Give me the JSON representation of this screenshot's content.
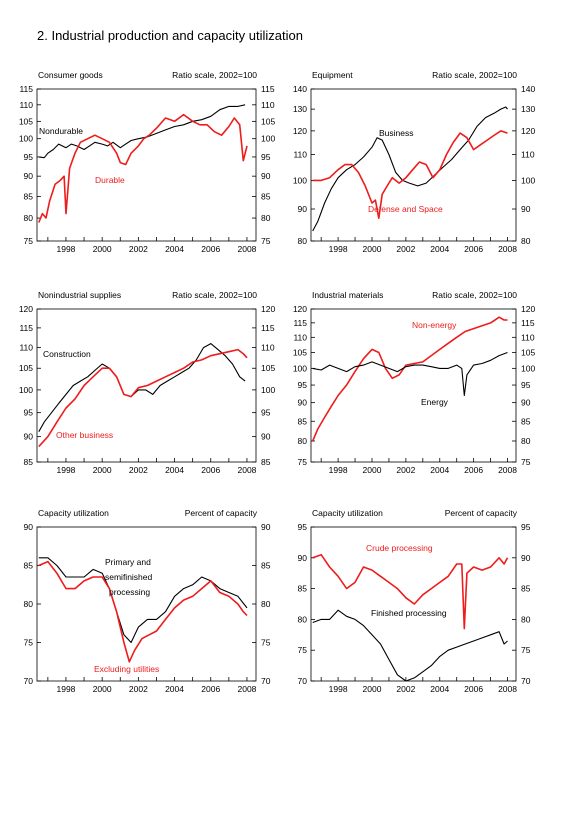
{
  "page": {
    "title": "2.  Industrial production and capacity utilization"
  },
  "colors": {
    "red": "#ee1c1c",
    "black": "#000000"
  },
  "chart_data": [
    {
      "type": "line",
      "title": "Consumer goods",
      "subtitle": "Ratio scale, 2002=100",
      "xlim": [
        1996.4,
        2008.5
      ],
      "ylim": [
        75,
        115
      ],
      "yticks": [
        75,
        80,
        85,
        90,
        95,
        100,
        105,
        110,
        115
      ],
      "xticks": [
        1998,
        2000,
        2002,
        2004,
        2006,
        2008
      ],
      "log_scale": true,
      "series": [
        {
          "name": "Nondurable",
          "color": "#000000",
          "x": [
            1996.5,
            1996.8,
            1997.0,
            1997.3,
            1997.6,
            1998.0,
            1998.3,
            1998.6,
            1999.0,
            1999.3,
            1999.6,
            2000.0,
            2000.3,
            2000.6,
            2001.0,
            2001.3,
            2001.6,
            2002.0,
            2002.5,
            2003.0,
            2003.5,
            2004.0,
            2004.5,
            2005.0,
            2005.5,
            2006.0,
            2006.5,
            2007.0,
            2007.5,
            2007.9
          ],
          "y": [
            95,
            94.8,
            96,
            97,
            98.5,
            97.5,
            98.5,
            98,
            97,
            98,
            99,
            98.5,
            98,
            99,
            97.5,
            98.5,
            99.5,
            100,
            100.5,
            101.5,
            102.5,
            103.5,
            104,
            105,
            105.5,
            106.5,
            108.5,
            109.5,
            109.5,
            110
          ]
        },
        {
          "name": "Durable",
          "color": "#ee1c1c",
          "x": [
            1996.5,
            1996.7,
            1996.9,
            1997.1,
            1997.4,
            1997.7,
            1997.9,
            1998.0,
            1998.2,
            1998.5,
            1998.8,
            1999.2,
            1999.6,
            2000.0,
            2000.4,
            2000.8,
            2001.0,
            2001.3,
            2001.6,
            2002.0,
            2002.3,
            2002.6,
            2003.0,
            2003.5,
            2004.0,
            2004.5,
            2005.0,
            2005.4,
            2005.8,
            2006.2,
            2006.6,
            2007.0,
            2007.3,
            2007.6,
            2007.8,
            2008.0
          ],
          "y": [
            79,
            81,
            80,
            84,
            88,
            89,
            90,
            81,
            92,
            96,
            99,
            100,
            101,
            100,
            99,
            96,
            93.5,
            93,
            96,
            98,
            100,
            101,
            103,
            106,
            105,
            107,
            105,
            104,
            104,
            102,
            101,
            103.5,
            106,
            104,
            94,
            98
          ]
        }
      ],
      "annotations": [
        {
          "text": "Nondurable",
          "color": "#000000"
        },
        {
          "text": "Durable",
          "color": "#ee1c1c"
        }
      ]
    },
    {
      "type": "line",
      "title": "Equipment",
      "subtitle": "Ratio scale, 2002=100",
      "xlim": [
        1996.4,
        2008.5
      ],
      "ylim": [
        80,
        140
      ],
      "yticks": [
        80,
        90,
        100,
        110,
        120,
        130,
        140
      ],
      "xticks": [
        1998,
        2000,
        2002,
        2004,
        2006,
        2008
      ],
      "log_scale": true,
      "series": [
        {
          "name": "Business",
          "color": "#000000",
          "x": [
            1996.5,
            1996.8,
            1997.2,
            1997.6,
            1998.0,
            1998.5,
            1999.0,
            1999.5,
            2000.0,
            2000.3,
            2000.6,
            2001.0,
            2001.4,
            2001.8,
            2002.2,
            2002.7,
            2003.2,
            2003.7,
            2004.2,
            2004.7,
            2005.2,
            2005.7,
            2006.2,
            2006.7,
            2007.2,
            2007.6,
            2007.9,
            2008.0
          ],
          "y": [
            83,
            86,
            92,
            97,
            101,
            104,
            106,
            109,
            113,
            117,
            116,
            110,
            103,
            100,
            99,
            98,
            99,
            102,
            105,
            108,
            112,
            116,
            122,
            126,
            128,
            130,
            131,
            130
          ]
        },
        {
          "name": "Defense and Space",
          "color": "#ee1c1c",
          "x": [
            1996.5,
            1997.0,
            1997.5,
            1998.0,
            1998.4,
            1998.8,
            1999.2,
            1999.6,
            2000.0,
            2000.2,
            2000.4,
            2000.6,
            2000.9,
            2001.2,
            2001.6,
            2002.0,
            2002.4,
            2002.8,
            2003.2,
            2003.6,
            2004.0,
            2004.4,
            2004.8,
            2005.2,
            2005.6,
            2006.0,
            2006.4,
            2006.8,
            2007.2,
            2007.6,
            2008.0
          ],
          "y": [
            100,
            100,
            101,
            104,
            106,
            106,
            103,
            98,
            92,
            93,
            87,
            95,
            98,
            101,
            99,
            101,
            104,
            107,
            106,
            101,
            104,
            110,
            115,
            119,
            117,
            112,
            114,
            116,
            118,
            120,
            119
          ]
        }
      ],
      "annotations": [
        {
          "text": "Business",
          "color": "#000000"
        },
        {
          "text": "Defense and Space",
          "color": "#ee1c1c"
        }
      ]
    },
    {
      "type": "line",
      "title": "Nonindustrial supplies",
      "subtitle": "Ratio scale, 2002=100",
      "xlim": [
        1996.4,
        2008.5
      ],
      "ylim": [
        85,
        120
      ],
      "yticks": [
        85,
        90,
        95,
        100,
        105,
        110,
        115,
        120
      ],
      "xticks": [
        1998,
        2000,
        2002,
        2004,
        2006,
        2008
      ],
      "log_scale": true,
      "series": [
        {
          "name": "Construction",
          "color": "#000000",
          "x": [
            1996.5,
            1996.8,
            1997.2,
            1997.6,
            1998.0,
            1998.4,
            1998.8,
            1999.2,
            1999.6,
            2000.0,
            2000.4,
            2000.8,
            2001.2,
            2001.6,
            2002.0,
            2002.4,
            2002.8,
            2003.2,
            2003.6,
            2004.0,
            2004.4,
            2004.8,
            2005.2,
            2005.6,
            2006.0,
            2006.4,
            2006.8,
            2007.2,
            2007.6,
            2007.9
          ],
          "y": [
            91,
            93,
            95,
            97,
            99,
            101,
            102,
            103,
            104.5,
            106,
            105,
            103,
            99,
            98.5,
            100,
            100,
            99,
            101,
            102,
            103,
            104,
            105,
            107,
            110,
            111,
            109.5,
            108,
            106,
            103,
            102
          ]
        },
        {
          "name": "Other business",
          "color": "#ee1c1c",
          "x": [
            1996.5,
            1997.0,
            1997.5,
            1998.0,
            1998.5,
            1999.0,
            1999.5,
            2000.0,
            2000.4,
            2000.8,
            2001.2,
            2001.6,
            2002.0,
            2002.5,
            2003.0,
            2003.5,
            2004.0,
            2004.5,
            2005.0,
            2005.5,
            2006.0,
            2006.5,
            2007.0,
            2007.5,
            2007.8,
            2008.0
          ],
          "y": [
            88,
            90,
            93,
            96,
            98,
            101,
            103,
            105,
            105,
            103,
            99,
            98.5,
            100.5,
            101,
            102,
            103,
            104,
            105,
            106.5,
            107,
            108,
            108.5,
            109,
            109.5,
            108.5,
            107.5
          ]
        }
      ],
      "annotations": [
        {
          "text": "Construction",
          "color": "#000000"
        },
        {
          "text": "Other business",
          "color": "#ee1c1c"
        }
      ]
    },
    {
      "type": "line",
      "title": "Industrial materials",
      "subtitle": "Ratio scale, 2002=100",
      "xlim": [
        1996.4,
        2008.5
      ],
      "ylim": [
        75,
        120
      ],
      "yticks": [
        75,
        80,
        85,
        90,
        95,
        100,
        105,
        110,
        115,
        120
      ],
      "xticks": [
        1998,
        2000,
        2002,
        2004,
        2006,
        2008
      ],
      "log_scale": true,
      "series": [
        {
          "name": "Non-energy",
          "color": "#ee1c1c",
          "x": [
            1996.5,
            1996.8,
            1997.2,
            1997.6,
            1998.0,
            1998.5,
            1999.0,
            1999.5,
            2000.0,
            2000.4,
            2000.8,
            2001.2,
            2001.6,
            2002.0,
            2002.5,
            2003.0,
            2003.5,
            2004.0,
            2004.5,
            2005.0,
            2005.5,
            2006.0,
            2006.5,
            2007.0,
            2007.5,
            2007.8,
            2008.0
          ],
          "y": [
            80,
            83,
            86,
            89,
            92,
            95,
            99,
            103,
            106,
            105,
            100,
            97,
            98,
            101,
            101.5,
            102,
            104,
            106,
            108,
            110,
            112,
            113,
            114,
            115,
            117,
            116,
            116
          ]
        },
        {
          "name": "Energy",
          "color": "#000000",
          "x": [
            1996.5,
            1997.0,
            1997.5,
            1998.0,
            1998.5,
            1999.0,
            1999.5,
            2000.0,
            2000.5,
            2001.0,
            2001.5,
            2002.0,
            2002.5,
            2003.0,
            2003.5,
            2004.0,
            2004.5,
            2005.0,
            2005.3,
            2005.45,
            2005.6,
            2006.0,
            2006.5,
            2007.0,
            2007.5,
            2008.0
          ],
          "y": [
            100,
            99.5,
            101,
            100,
            99,
            100.5,
            101,
            102,
            101,
            100,
            99,
            100.5,
            101,
            101,
            100.5,
            100,
            100,
            101,
            100,
            92,
            98,
            101,
            101.5,
            102.5,
            104,
            105
          ]
        }
      ],
      "annotations": [
        {
          "text": "Non-energy",
          "color": "#ee1c1c"
        },
        {
          "text": "Energy",
          "color": "#000000"
        }
      ]
    },
    {
      "type": "line",
      "title": "Capacity utilization",
      "subtitle": "Percent of capacity",
      "xlim": [
        1996.4,
        2008.5
      ],
      "ylim": [
        70,
        90
      ],
      "yticks": [
        70,
        75,
        80,
        85,
        90
      ],
      "xticks": [
        1998,
        2000,
        2002,
        2004,
        2006,
        2008
      ],
      "log_scale": false,
      "series": [
        {
          "name": "Primary and semifinished processing",
          "color": "#000000",
          "x": [
            1996.5,
            1997.0,
            1997.5,
            1998.0,
            1998.5,
            1999.0,
            1999.5,
            2000.0,
            2000.4,
            2000.8,
            2001.2,
            2001.6,
            2002.0,
            2002.5,
            2003.0,
            2003.5,
            2004.0,
            2004.5,
            2005.0,
            2005.5,
            2006.0,
            2006.5,
            2007.0,
            2007.5,
            2008.0
          ],
          "y": [
            86,
            86,
            85,
            83.5,
            83.5,
            83.5,
            84.5,
            84,
            82,
            79,
            76,
            75,
            77,
            78,
            78,
            79,
            81,
            82,
            82.5,
            83.5,
            83,
            82,
            81.5,
            81,
            79.5
          ]
        },
        {
          "name": "Excluding utilities",
          "color": "#ee1c1c",
          "x": [
            1996.5,
            1997.0,
            1997.5,
            1998.0,
            1998.5,
            1999.0,
            1999.5,
            2000.0,
            2000.4,
            2000.8,
            2001.2,
            2001.5,
            2001.8,
            2002.2,
            2002.6,
            2003.0,
            2003.5,
            2004.0,
            2004.5,
            2005.0,
            2005.5,
            2006.0,
            2006.5,
            2007.0,
            2007.5,
            2007.8,
            2008.0
          ],
          "y": [
            85,
            85.5,
            84,
            82,
            82,
            83,
            83.5,
            83.5,
            82,
            79,
            75,
            72.5,
            74,
            75.5,
            76,
            76.5,
            78,
            79.5,
            80.5,
            81,
            82,
            83,
            81.5,
            81,
            80,
            79,
            78.5
          ]
        }
      ],
      "annotations": [
        {
          "text": "Primary and",
          "color": "#000000"
        },
        {
          "text": "semifinished",
          "color": "#000000"
        },
        {
          "text": "processing",
          "color": "#000000"
        },
        {
          "text": "Excluding utilities",
          "color": "#ee1c1c"
        }
      ]
    },
    {
      "type": "line",
      "title": "Capacity utilization",
      "subtitle": "Percent of capacity",
      "xlim": [
        1996.4,
        2008.5
      ],
      "ylim": [
        70,
        95
      ],
      "yticks": [
        70,
        75,
        80,
        85,
        90,
        95
      ],
      "xticks": [
        1998,
        2000,
        2002,
        2004,
        2006,
        2008
      ],
      "log_scale": false,
      "series": [
        {
          "name": "Crude processing",
          "color": "#ee1c1c",
          "x": [
            1996.5,
            1997.0,
            1997.5,
            1998.0,
            1998.5,
            1999.0,
            1999.5,
            2000.0,
            2000.5,
            2001.0,
            2001.5,
            2002.0,
            2002.5,
            2003.0,
            2003.5,
            2004.0,
            2004.5,
            2005.0,
            2005.3,
            2005.45,
            2005.6,
            2006.0,
            2006.5,
            2007.0,
            2007.5,
            2007.8,
            2008.0
          ],
          "y": [
            90,
            90.5,
            88.5,
            87,
            85,
            86,
            88.5,
            88,
            87,
            86,
            85,
            83.5,
            82.5,
            84,
            85,
            86,
            87,
            89,
            89,
            78.5,
            87.5,
            88.5,
            88,
            88.5,
            90,
            89,
            90
          ]
        },
        {
          "name": "Finished processing",
          "color": "#000000",
          "x": [
            1996.5,
            1997.0,
            1997.5,
            1998.0,
            1998.5,
            1999.0,
            1999.5,
            2000.0,
            2000.5,
            2001.0,
            2001.5,
            2002.0,
            2002.5,
            2003.0,
            2003.5,
            2004.0,
            2004.5,
            2005.0,
            2005.5,
            2006.0,
            2006.5,
            2007.0,
            2007.5,
            2007.8,
            2008.0
          ],
          "y": [
            79.5,
            80,
            80,
            81.5,
            80.5,
            80,
            79,
            77.5,
            76,
            73.5,
            71,
            70,
            70.5,
            71.5,
            72.5,
            74,
            75,
            75.5,
            76,
            76.5,
            77,
            77.5,
            78,
            76,
            76.5
          ]
        }
      ],
      "annotations": [
        {
          "text": "Crude processing",
          "color": "#ee1c1c"
        },
        {
          "text": "Finished processing",
          "color": "#000000"
        }
      ]
    }
  ]
}
